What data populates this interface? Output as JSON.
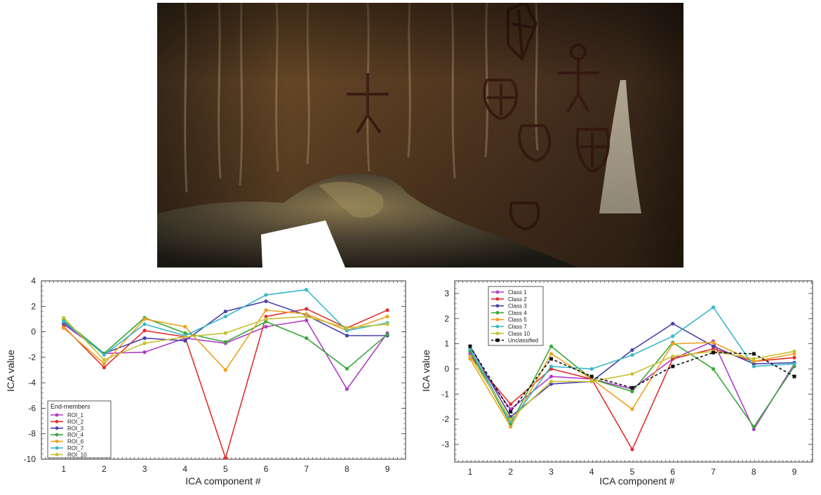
{
  "photo": {
    "description_icon": "cave-rock-art-photo-icon"
  },
  "chart_data": [
    {
      "type": "line",
      "xlabel": "ICA component #",
      "ylabel": "ICA value",
      "x": [
        1,
        2,
        3,
        4,
        5,
        6,
        7,
        8,
        9
      ],
      "ylim": [
        -10,
        4
      ],
      "yticks": [
        4,
        2,
        0,
        -2,
        -4,
        -6,
        -8,
        -10
      ],
      "legend_title": "End-members",
      "legend_position": "bottom-left",
      "series": [
        {
          "name": "ROI_1",
          "color": "#b03cc8",
          "values": [
            0.6,
            -1.7,
            -1.6,
            -0.5,
            -0.9,
            0.4,
            0.9,
            -4.5,
            -0.1
          ]
        },
        {
          "name": "ROI_2",
          "color": "#e0302c",
          "values": [
            0.4,
            -2.8,
            0.1,
            -0.4,
            -9.9,
            1.2,
            1.8,
            0.3,
            1.7
          ]
        },
        {
          "name": "ROI_3",
          "color": "#4a40a8",
          "values": [
            0.7,
            -1.7,
            -0.5,
            -0.7,
            1.6,
            2.4,
            1.3,
            -0.3,
            -0.3
          ]
        },
        {
          "name": "ROI_4",
          "color": "#3aa83a",
          "values": [
            0.9,
            -1.7,
            1.1,
            -0.1,
            -0.8,
            0.8,
            -0.5,
            -2.9,
            -0.2
          ]
        },
        {
          "name": "ROI_6",
          "color": "#f0a020",
          "values": [
            0.3,
            -2.5,
            1.0,
            0.4,
            -3.0,
            1.7,
            1.4,
            0.1,
            1.2
          ]
        },
        {
          "name": "ROI_7",
          "color": "#38b8c8",
          "values": [
            0.8,
            -1.8,
            0.6,
            -0.3,
            1.2,
            2.9,
            3.3,
            0.1,
            0.7
          ]
        },
        {
          "name": "ROI_10",
          "color": "#c8c030",
          "values": [
            1.1,
            -2.2,
            -0.9,
            -0.4,
            -0.1,
            1.0,
            1.2,
            0.3,
            0.6
          ]
        }
      ]
    },
    {
      "type": "line",
      "xlabel": "ICA component #",
      "ylabel": "ICA value",
      "x": [
        1,
        2,
        3,
        4,
        5,
        6,
        7,
        8,
        9
      ],
      "ylim": [
        -3.7,
        3.5
      ],
      "yticks": [
        3,
        2,
        1,
        0,
        -1,
        -2,
        -3
      ],
      "legend_position": "top-left",
      "series": [
        {
          "name": "Class 1",
          "color": "#b03cc8",
          "dashed": false,
          "values": [
            0.6,
            -1.6,
            -0.3,
            -0.4,
            -0.8,
            0.4,
            1.1,
            -2.4,
            0.2
          ]
        },
        {
          "name": "Class 2",
          "color": "#e0302c",
          "dashed": false,
          "values": [
            0.5,
            -1.4,
            0.0,
            -0.4,
            -3.2,
            0.4,
            0.8,
            0.3,
            0.45
          ]
        },
        {
          "name": "Class 3",
          "color": "#4a40a8",
          "dashed": false,
          "values": [
            0.9,
            -1.9,
            -0.6,
            -0.5,
            0.75,
            1.8,
            0.9,
            0.2,
            0.25
          ]
        },
        {
          "name": "Class 4",
          "color": "#3aa83a",
          "dashed": false,
          "values": [
            0.7,
            -2.2,
            0.9,
            -0.4,
            -0.9,
            1.05,
            0.0,
            -2.3,
            0.1
          ]
        },
        {
          "name": "Class 5",
          "color": "#f0a020",
          "dashed": false,
          "values": [
            0.4,
            -2.3,
            0.6,
            -0.4,
            -1.6,
            1.0,
            1.05,
            0.3,
            0.6
          ]
        },
        {
          "name": "Class 7",
          "color": "#38b8c8",
          "dashed": false,
          "values": [
            0.8,
            -2.1,
            0.1,
            0.0,
            0.55,
            1.3,
            2.45,
            0.1,
            0.2
          ]
        },
        {
          "name": "Class 10",
          "color": "#c8c030",
          "dashed": false,
          "values": [
            0.5,
            -2.0,
            -0.5,
            -0.5,
            -0.2,
            0.5,
            0.7,
            0.4,
            0.7
          ]
        },
        {
          "name": "Unclassified",
          "color": "#111111",
          "dashed": true,
          "values": [
            0.9,
            -1.7,
            0.4,
            -0.3,
            -0.75,
            0.1,
            0.65,
            0.6,
            -0.3
          ]
        }
      ]
    }
  ]
}
